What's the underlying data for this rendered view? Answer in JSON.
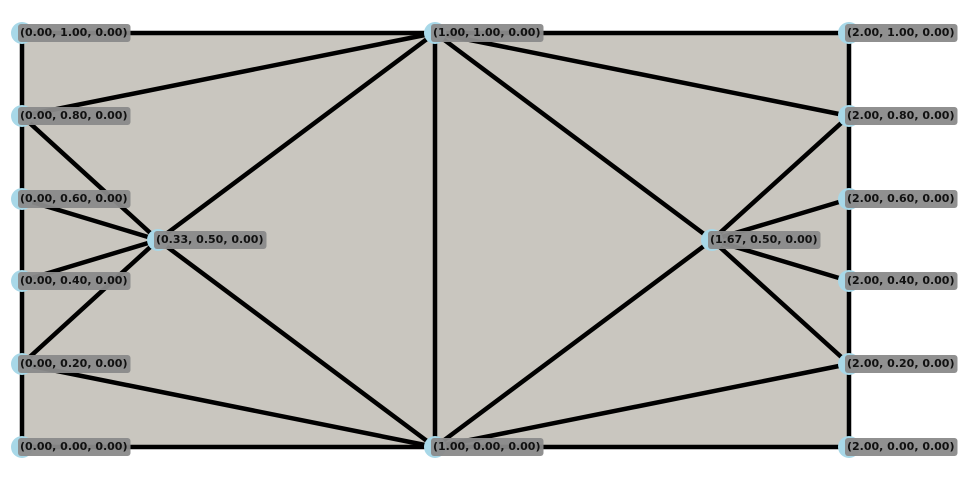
{
  "nodes": [
    {
      "label": "(0.00, 1.00, 0.00)"
    },
    {
      "label": "(0.00, 0.80, 0.00)"
    },
    {
      "label": "(0.00, 0.60, 0.00)"
    },
    {
      "label": "(0.00, 0.40, 0.00)"
    },
    {
      "label": "(0.00, 0.20, 0.00)"
    },
    {
      "label": "(0.00, 0.00, 0.00)"
    },
    {
      "label": "(0.33, 0.50, 0.00)"
    },
    {
      "label": "(1.00, 1.00, 0.00)"
    },
    {
      "label": "(1.00, 0.00, 0.00)"
    },
    {
      "label": "(2.00, 1.00, 0.00)"
    },
    {
      "label": "(2.00, 0.80, 0.00)"
    },
    {
      "label": "(2.00, 0.60, 0.00)"
    },
    {
      "label": "(2.00, 0.40, 0.00)"
    },
    {
      "label": "(2.00, 0.20, 0.00)"
    },
    {
      "label": "(2.00, 0.00, 0.00)"
    },
    {
      "label": "(1.67, 0.50, 0.00)"
    }
  ]
}
